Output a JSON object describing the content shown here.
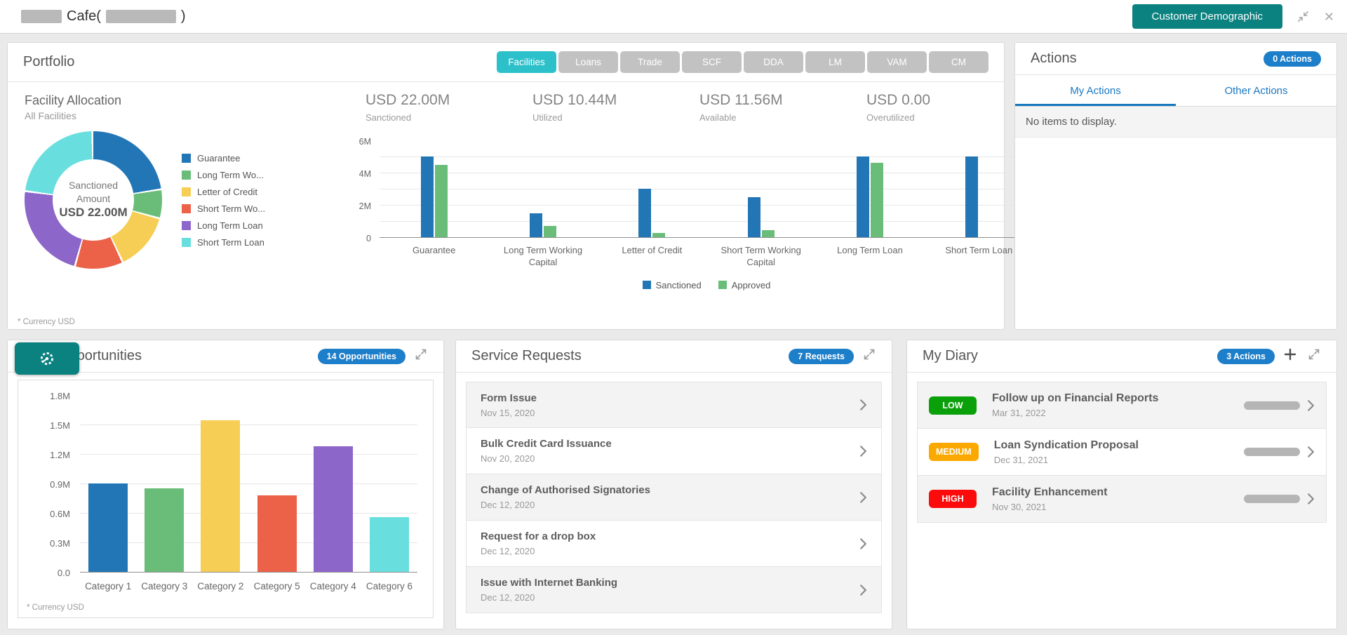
{
  "header": {
    "title_part": "Cafe(",
    "title_close": ")",
    "customer_demographic": "Customer Demographic"
  },
  "icons": {
    "close": "✕",
    "plus": "+"
  },
  "portfolio": {
    "title": "Portfolio",
    "tabs": [
      {
        "label": "Facilities",
        "active": true
      },
      {
        "label": "Loans",
        "active": false
      },
      {
        "label": "Trade",
        "active": false
      },
      {
        "label": "SCF",
        "active": false
      },
      {
        "label": "DDA",
        "active": false
      },
      {
        "label": "LM",
        "active": false
      },
      {
        "label": "VAM",
        "active": false
      },
      {
        "label": "CM",
        "active": false
      }
    ],
    "facility_allocation": {
      "title": "Facility Allocation",
      "subtitle": "All Facilities",
      "center_label1": "Sanctioned",
      "center_label2": "Amount",
      "center_value": "USD 22.00M"
    },
    "stats": [
      {
        "value": "USD 22.00M",
        "label": "Sanctioned"
      },
      {
        "value": "USD 10.44M",
        "label": "Utilized"
      },
      {
        "value": "USD 11.56M",
        "label": "Available"
      },
      {
        "value": "USD 0.00",
        "label": "Overutilized"
      }
    ],
    "footnote": "* Currency USD"
  },
  "actions": {
    "title": "Actions",
    "badge": "0 Actions",
    "tabs": [
      {
        "label": "My Actions",
        "active": true
      },
      {
        "label": "Other Actions",
        "active": false
      }
    ],
    "empty_message": "No items to display."
  },
  "opportunities": {
    "title": "Opportunities",
    "badge": "14 Opportunities",
    "footnote": "* Currency USD"
  },
  "service_requests": {
    "title": "Service Requests",
    "badge": "7 Requests",
    "items": [
      {
        "title": "Form Issue",
        "date": "Nov 15, 2020"
      },
      {
        "title": "Bulk Credit Card Issuance",
        "date": "Nov 20, 2020"
      },
      {
        "title": "Change of Authorised Signatories",
        "date": "Dec 12, 2020"
      },
      {
        "title": "Request for a drop box",
        "date": "Dec 12, 2020"
      },
      {
        "title": "Issue with Internet Banking",
        "date": "Dec 12, 2020"
      }
    ]
  },
  "my_diary": {
    "title": "My Diary",
    "badge": "3 Actions",
    "items": [
      {
        "priority": "LOW",
        "priority_color": "#0aa00a",
        "title": "Follow up on Financial Reports",
        "date": "Mar 31, 2022"
      },
      {
        "priority": "MEDIUM",
        "priority_color": "#fba800",
        "title": "Loan Syndication Proposal",
        "date": "Dec 31, 2021"
      },
      {
        "priority": "HIGH",
        "priority_color": "#fb0b0b",
        "title": "Facility Enhancement",
        "date": "Nov 30, 2021"
      }
    ]
  },
  "chart_data": [
    {
      "id": "facility-donut",
      "type": "pie",
      "title": "Facility Allocation - All Facilities",
      "center_text": "Sanctioned Amount USD 22.00M",
      "unit": "USD millions",
      "labels": [
        "Guarantee",
        "Long Term Wo...",
        "Letter of Credit",
        "Short Term Wo...",
        "Long Term Loan",
        "Short Term Loan"
      ],
      "values": [
        5,
        1.5,
        3,
        2.5,
        5,
        5
      ],
      "colors": [
        "#2276b5",
        "#6abd79",
        "#f6ce55",
        "#eb6248",
        "#8c66c9",
        "#69dede"
      ],
      "legend_position": "right"
    },
    {
      "id": "facility-bars",
      "type": "bar",
      "categories": [
        "Guarantee",
        "Long Term Working Capital",
        "Letter of Credit",
        "Short Term Working Capital",
        "Long Term Loan",
        "Short Term Loan"
      ],
      "series": [
        {
          "name": "Sanctioned",
          "color": "#2276b5",
          "values": [
            5,
            1.5,
            3,
            2.5,
            5,
            5
          ]
        },
        {
          "name": "Approved",
          "color": "#6abd79",
          "values": [
            4.5,
            0.7,
            0.25,
            0.45,
            4.6,
            0
          ]
        }
      ],
      "unit": "USD millions",
      "ylim": [
        0,
        6
      ],
      "y_ticks": [
        "0",
        "2M",
        "4M",
        "6M"
      ],
      "grid": true,
      "legend_position": "bottom"
    },
    {
      "id": "opportunities-bars",
      "type": "bar",
      "title": "Opportunities",
      "categories": [
        "Category 1",
        "Category 3",
        "Category 2",
        "Category 5",
        "Category 4",
        "Category 6"
      ],
      "values": [
        0.9,
        0.85,
        1.54,
        0.78,
        1.28,
        0.56
      ],
      "colors": [
        "#2276b5",
        "#6abd79",
        "#f6ce55",
        "#eb6248",
        "#8c66c9",
        "#69dede"
      ],
      "unit": "USD millions",
      "ylim": [
        0,
        1.8
      ],
      "y_ticks": [
        "0.0",
        "0.3M",
        "0.6M",
        "0.9M",
        "1.2M",
        "1.5M",
        "1.8M"
      ],
      "grid": true,
      "legend_position": "none"
    }
  ]
}
